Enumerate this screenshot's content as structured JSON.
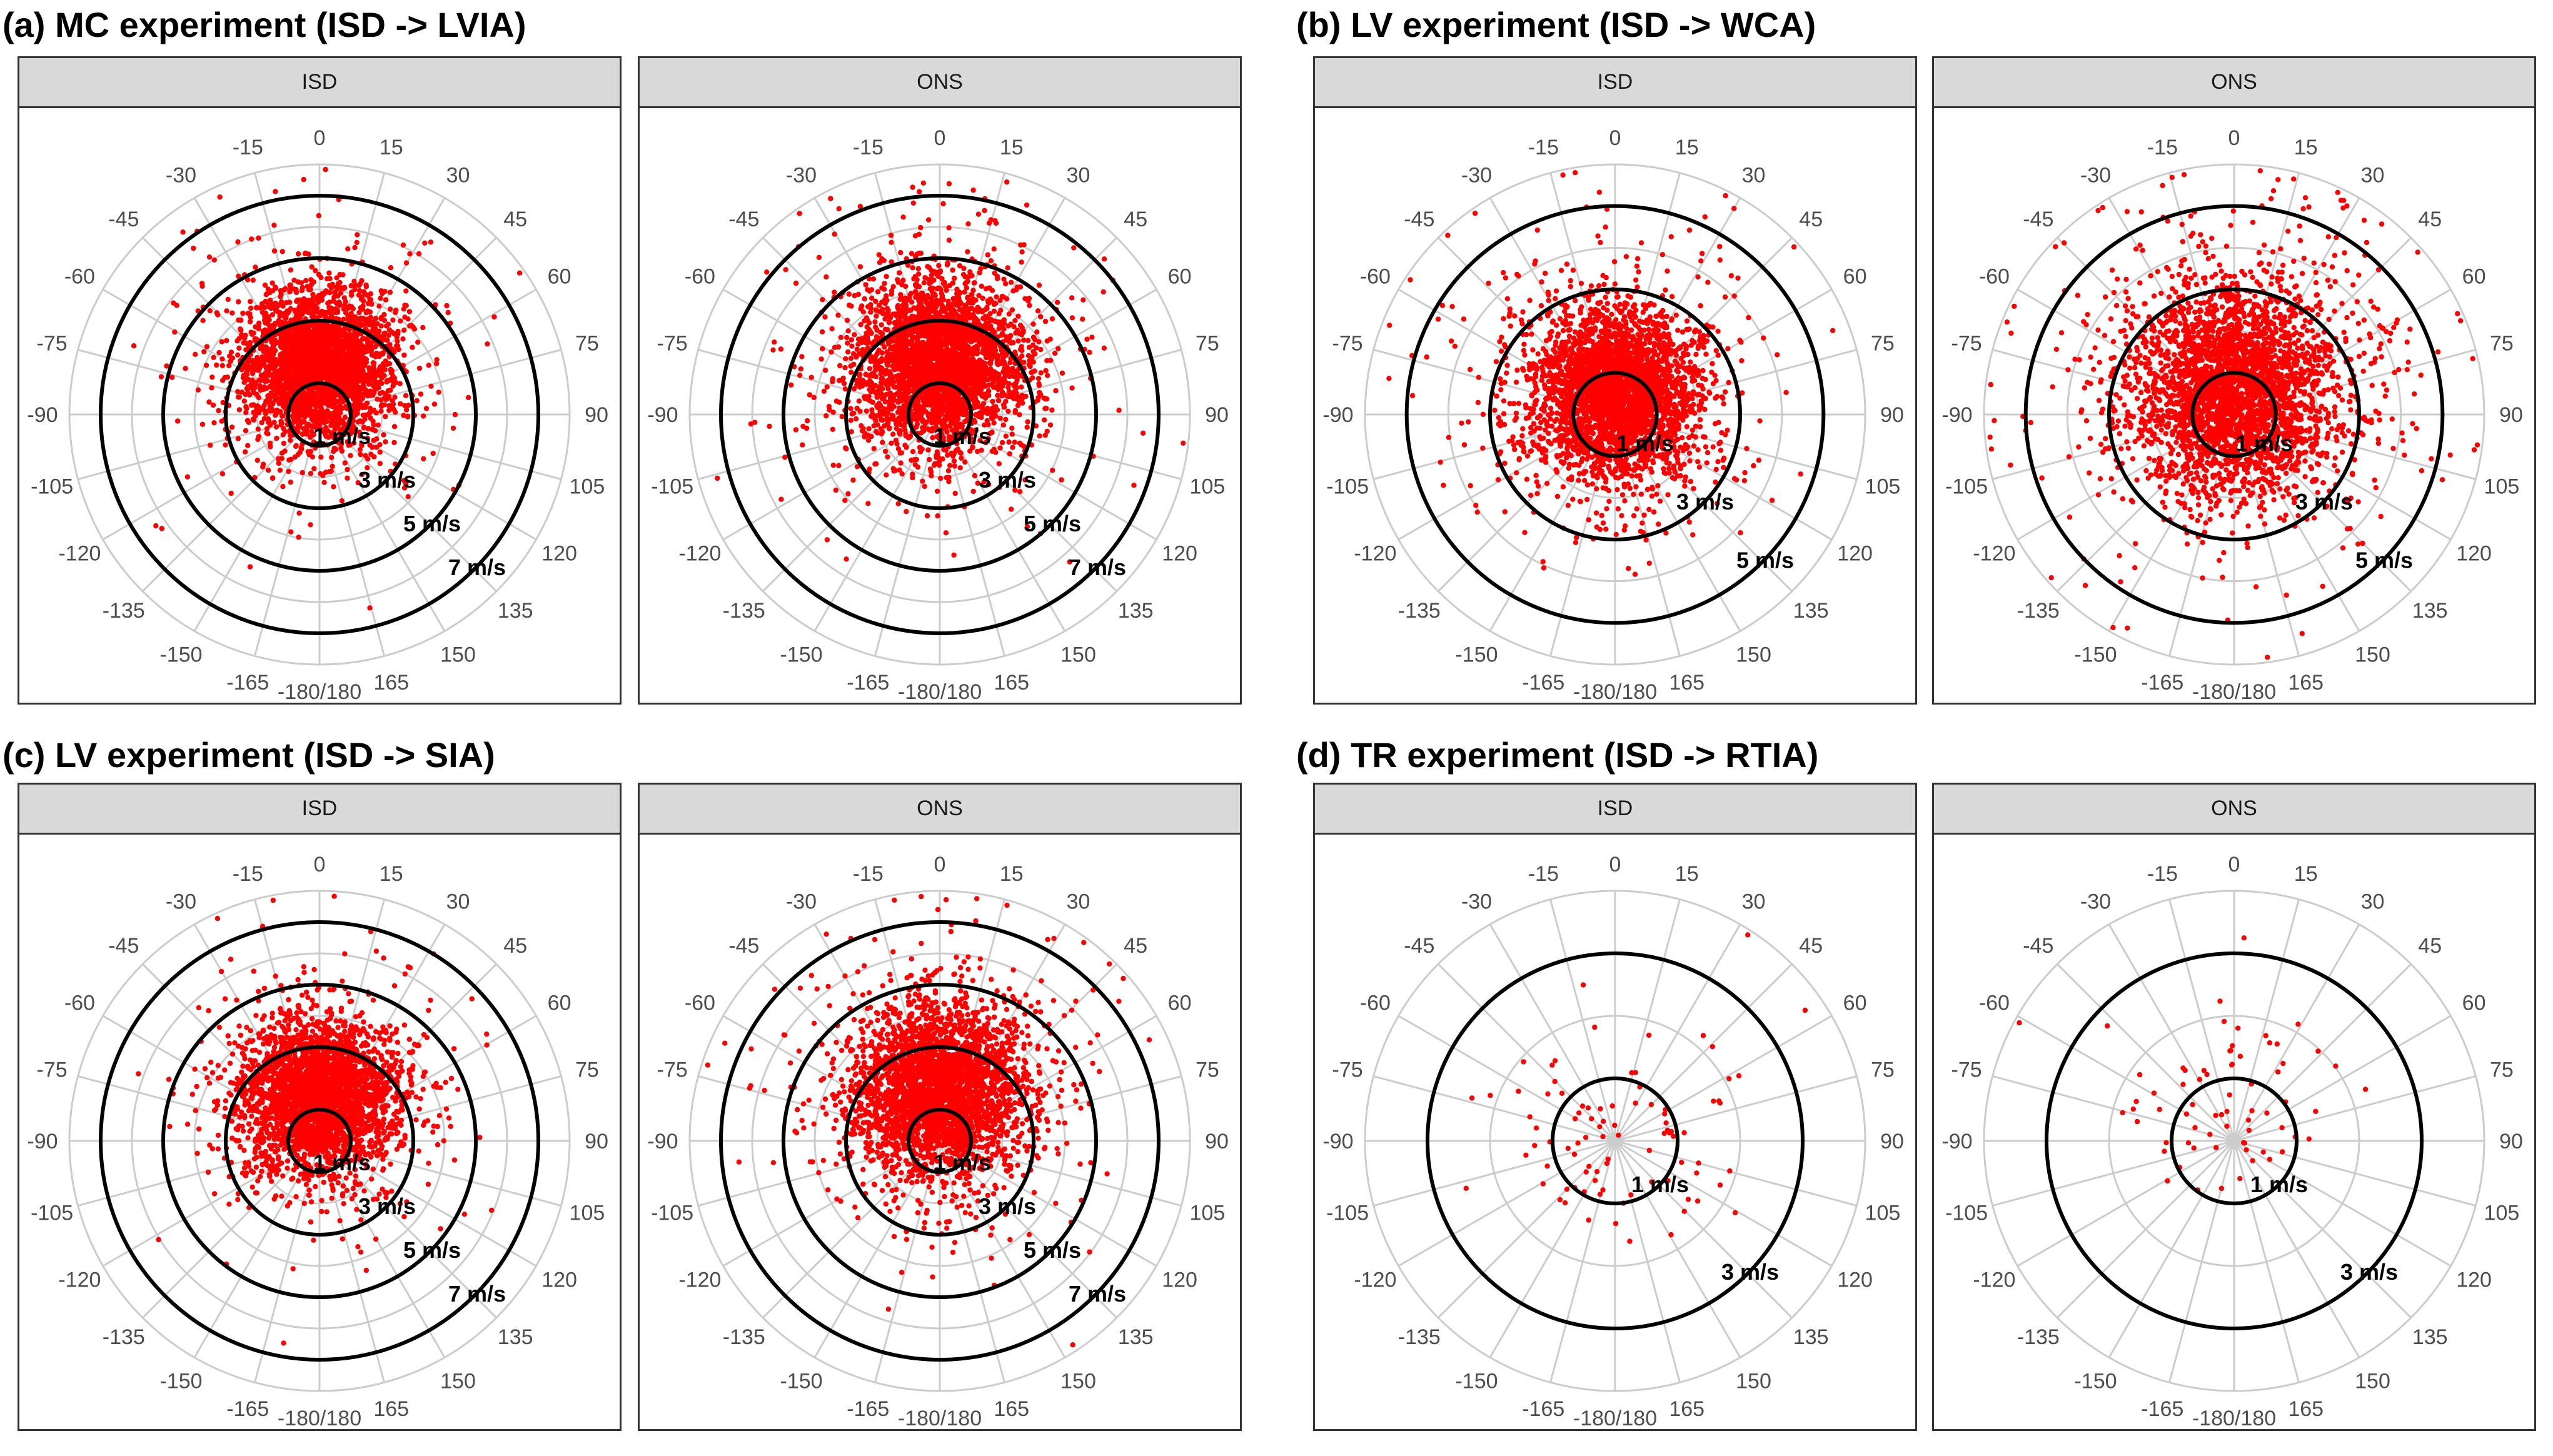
{
  "figure": {
    "groups": [
      {
        "title": "(a) MC experiment (ISD -> LVIA)",
        "panels": [
          {
            "strip": "ISD",
            "rings": [
              1,
              3,
              5,
              7
            ],
            "ring_labels": [
              "1 m/s",
              "3 m/s",
              "5 m/s",
              "7 m/s"
            ],
            "cloud": {
              "n": 3200,
              "sd": 1.15,
              "center": [
                0.0,
                1.5
              ]
            }
          },
          {
            "strip": "ONS",
            "rings": [
              1,
              3,
              5,
              7
            ],
            "ring_labels": [
              "1 m/s",
              "3 m/s",
              "5 m/s",
              "7 m/s"
            ],
            "cloud": {
              "n": 3200,
              "sd": 1.3,
              "center": [
                0.0,
                1.6
              ]
            }
          }
        ]
      },
      {
        "title": "(b) LV experiment (ISD -> WCA)",
        "panels": [
          {
            "strip": "ISD",
            "rings": [
              1,
              3,
              5
            ],
            "ring_labels": [
              "1 m/s",
              "3 m/s",
              "5 m/s"
            ],
            "cloud": {
              "n": 3200,
              "sd": 1.0,
              "center": [
                0.0,
                0.5
              ]
            }
          },
          {
            "strip": "ONS",
            "rings": [
              1,
              3,
              5
            ],
            "ring_labels": [
              "1 m/s",
              "3 m/s",
              "5 m/s"
            ],
            "cloud": {
              "n": 3200,
              "sd": 1.25,
              "center": [
                0.0,
                0.6
              ]
            }
          }
        ]
      },
      {
        "title": "(c) LV experiment (ISD -> SIA)",
        "panels": [
          {
            "strip": "ISD",
            "rings": [
              1,
              3,
              5,
              7
            ],
            "ring_labels": [
              "1 m/s",
              "3 m/s",
              "5 m/s",
              "7 m/s"
            ],
            "cloud": {
              "n": 3000,
              "sd": 1.2,
              "center": [
                0.0,
                1.5
              ]
            }
          },
          {
            "strip": "ONS",
            "rings": [
              1,
              3,
              5,
              7
            ],
            "ring_labels": [
              "1 m/s",
              "3 m/s",
              "5 m/s",
              "7 m/s"
            ],
            "cloud": {
              "n": 3000,
              "sd": 1.35,
              "center": [
                0.0,
                1.6
              ]
            }
          }
        ]
      },
      {
        "title": "(d) TR experiment (ISD -> RTIA)",
        "panels": [
          {
            "strip": "ISD",
            "rings": [
              1,
              3
            ],
            "ring_labels": [
              "1 m/s",
              "3 m/s"
            ],
            "cloud": {
              "n": 90,
              "sd": 0.9,
              "center": [
                0.0,
                0.0
              ]
            }
          },
          {
            "strip": "ONS",
            "rings": [
              1,
              3
            ],
            "ring_labels": [
              "1 m/s",
              "3 m/s"
            ],
            "cloud": {
              "n": 70,
              "sd": 0.8,
              "center": [
                0.0,
                0.5
              ]
            }
          }
        ]
      }
    ],
    "angle_labels": [
      "0",
      "15",
      "30",
      "45",
      "60",
      "75",
      "90",
      "105",
      "120",
      "135",
      "150",
      "165",
      "-180/180",
      "-165",
      "-150",
      "-135",
      "-120",
      "-105",
      "-90",
      "-75",
      "-60",
      "-45",
      "-30",
      "-15"
    ]
  },
  "chart_data": {
    "type": "scatter",
    "coordinate_system": "polar",
    "angle_unit": "degrees",
    "angle_ticks": [
      0,
      15,
      30,
      45,
      60,
      75,
      90,
      105,
      120,
      135,
      150,
      165,
      180,
      -165,
      -150,
      -135,
      -120,
      -105,
      -90,
      -75,
      -60,
      -45,
      -30,
      -15
    ],
    "radius_unit": "m/s",
    "series_color": "#ff0000",
    "ring_color": "#000000",
    "grid_color": "#cccccc",
    "panels": [
      {
        "group": "(a) MC experiment (ISD -> LVIA)",
        "facet": "ISD",
        "r_max": 8,
        "rings": [
          1,
          3,
          5,
          7
        ]
      },
      {
        "group": "(a) MC experiment (ISD -> LVIA)",
        "facet": "ONS",
        "r_max": 8,
        "rings": [
          1,
          3,
          5,
          7
        ]
      },
      {
        "group": "(b) LV experiment (ISD -> WCA)",
        "facet": "ISD",
        "r_max": 6,
        "rings": [
          1,
          3,
          5
        ]
      },
      {
        "group": "(b) LV experiment (ISD -> WCA)",
        "facet": "ONS",
        "r_max": 6,
        "rings": [
          1,
          3,
          5
        ]
      },
      {
        "group": "(c) LV experiment (ISD -> SIA)",
        "facet": "ISD",
        "r_max": 8,
        "rings": [
          1,
          3,
          5,
          7
        ]
      },
      {
        "group": "(c) LV experiment (ISD -> SIA)",
        "facet": "ONS",
        "r_max": 8,
        "rings": [
          1,
          3,
          5,
          7
        ]
      },
      {
        "group": "(d) TR experiment (ISD -> RTIA)",
        "facet": "ISD",
        "r_max": 4,
        "rings": [
          1,
          3
        ]
      },
      {
        "group": "(d) TR experiment (ISD -> RTIA)",
        "facet": "ONS",
        "r_max": 4,
        "rings": [
          1,
          3
        ]
      }
    ]
  }
}
